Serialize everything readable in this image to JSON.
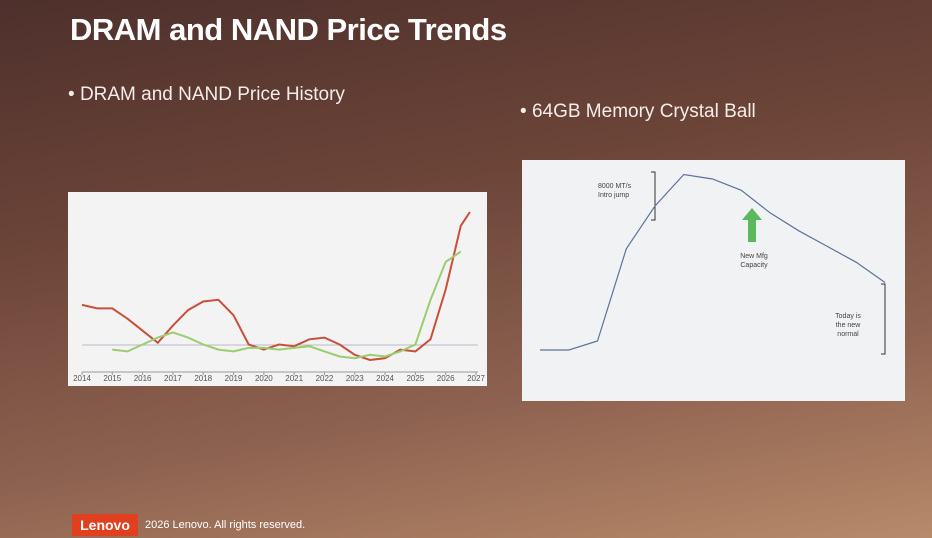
{
  "slide": {
    "title": "DRAM and NAND Price Trends",
    "bullets": [
      "DRAM and NAND Price History",
      "64GB Memory Crystal Ball"
    ],
    "footer": {
      "logo": "Lenovo",
      "copyright": "2026 Lenovo. All rights reserved."
    }
  },
  "chart_data": [
    {
      "type": "line",
      "x": [
        2014,
        2014.5,
        2015,
        2015.5,
        2016,
        2016.5,
        2017,
        2017.5,
        2018,
        2018.5,
        2019,
        2019.5,
        2020,
        2020.5,
        2021,
        2021.5,
        2022,
        2022.5,
        2023,
        2023.5,
        2024,
        2024.5,
        2025,
        2025.5,
        2026,
        2026.5,
        2026.8
      ],
      "xlim": [
        2014,
        2027
      ],
      "xticks": [
        2014,
        2015,
        2016,
        2017,
        2018,
        2019,
        2020,
        2021,
        2022,
        2023,
        2024,
        2025,
        2026,
        2027
      ],
      "ylim": [
        0,
        100
      ],
      "series": [
        {
          "name": null,
          "color": "#c8503a",
          "values": [
            39,
            37,
            37,
            31,
            24,
            17,
            27,
            36,
            41,
            42,
            33,
            16,
            13,
            16,
            15,
            19,
            20,
            16,
            10,
            7,
            8,
            13,
            12,
            19,
            48,
            85,
            93
          ]
        },
        {
          "name": null,
          "color": "#9ccc70",
          "values": [
            null,
            null,
            13,
            12,
            16,
            20,
            23,
            20,
            16,
            13,
            12,
            14,
            14,
            13,
            14,
            15,
            12,
            9,
            8,
            10,
            9,
            12,
            16,
            42,
            64,
            70,
            null
          ]
        }
      ]
    },
    {
      "type": "line",
      "categories": [
        null,
        null,
        null,
        null,
        null,
        null,
        null,
        null,
        null,
        null,
        null,
        null,
        null
      ],
      "ylim": [
        0,
        100
      ],
      "series": [
        {
          "name": null,
          "color": "#5d7398",
          "values": [
            20,
            20,
            24,
            65,
            84,
            98,
            96,
            91,
            81,
            73,
            66,
            59,
            50
          ]
        }
      ],
      "annotations": [
        [
          "8000 MT/s",
          "Intro jump"
        ],
        [
          "New Mfg",
          "Capacity"
        ],
        [
          "Today is",
          "the new",
          "normal"
        ]
      ]
    }
  ]
}
